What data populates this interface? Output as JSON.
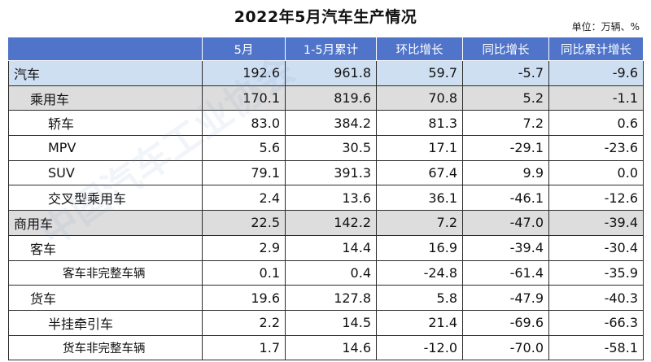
{
  "title": "2022年5月汽车生产情况",
  "unit": "单位：万辆、%",
  "headers": [
    "",
    "5月",
    "1-5月累计",
    "环比增长",
    "同比增长",
    "同比累计增长"
  ],
  "rows": [
    {
      "label": "汽车",
      "level": 0,
      "style": "blue",
      "values": [
        "192.6",
        "961.8",
        "59.7",
        "-5.7",
        "-9.6"
      ]
    },
    {
      "label": "乘用车",
      "level": 1,
      "style": "gray",
      "values": [
        "170.1",
        "819.6",
        "70.8",
        "5.2",
        "-1.1"
      ]
    },
    {
      "label": "轿车",
      "level": 2,
      "style": "white",
      "values": [
        "83.0",
        "384.2",
        "81.3",
        "7.2",
        "0.6"
      ]
    },
    {
      "label": "MPV",
      "level": 2,
      "style": "white",
      "values": [
        "5.6",
        "30.5",
        "17.1",
        "-29.1",
        "-23.6"
      ]
    },
    {
      "label": "SUV",
      "level": 2,
      "style": "white",
      "values": [
        "79.1",
        "391.3",
        "67.4",
        "9.9",
        "0.0"
      ]
    },
    {
      "label": "交叉型乘用车",
      "level": 2,
      "style": "white",
      "values": [
        "2.4",
        "13.6",
        "36.1",
        "-46.1",
        "-12.6"
      ]
    },
    {
      "label": "商用车",
      "level": 0,
      "style": "gray",
      "values": [
        "22.5",
        "142.2",
        "7.2",
        "-47.0",
        "-39.4"
      ]
    },
    {
      "label": "客车",
      "level": 1,
      "style": "white",
      "values": [
        "2.9",
        "14.4",
        "16.9",
        "-39.4",
        "-30.4"
      ]
    },
    {
      "label": "客车非完整车辆",
      "level": 3,
      "style": "white",
      "values": [
        "0.1",
        "0.4",
        "-24.8",
        "-61.4",
        "-35.9"
      ]
    },
    {
      "label": "货车",
      "level": 1,
      "style": "white",
      "values": [
        "19.6",
        "127.8",
        "5.8",
        "-47.9",
        "-40.3"
      ]
    },
    {
      "label": "半挂牵引车",
      "level": 2,
      "style": "white",
      "values": [
        "2.2",
        "14.5",
        "21.4",
        "-69.6",
        "-66.3"
      ]
    },
    {
      "label": "货车非完整车辆",
      "level": 3,
      "style": "white",
      "values": [
        "1.7",
        "14.6",
        "-12.0",
        "-70.0",
        "-58.1"
      ]
    }
  ],
  "watermark": "中国汽车工业协会"
}
